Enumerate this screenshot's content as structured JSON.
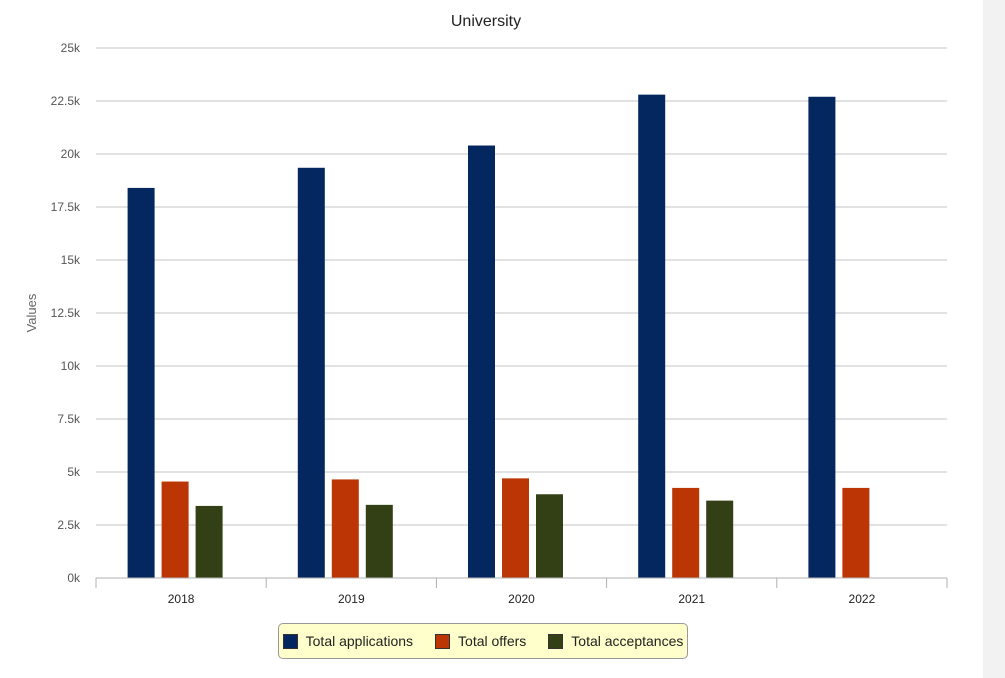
{
  "chart_data": {
    "type": "bar",
    "title": "University",
    "xlabel": "",
    "ylabel": "Values",
    "ylim": [
      0,
      25000
    ],
    "yticks": [
      {
        "value": 0,
        "label": "0k"
      },
      {
        "value": 2500,
        "label": "2.5k"
      },
      {
        "value": 5000,
        "label": "5k"
      },
      {
        "value": 7500,
        "label": "7.5k"
      },
      {
        "value": 10000,
        "label": "10k"
      },
      {
        "value": 12500,
        "label": "12.5k"
      },
      {
        "value": 15000,
        "label": "15k"
      },
      {
        "value": 17500,
        "label": "17.5k"
      },
      {
        "value": 20000,
        "label": "20k"
      },
      {
        "value": 22500,
        "label": "22.5k"
      },
      {
        "value": 25000,
        "label": "25k"
      }
    ],
    "categories": [
      "2018",
      "2019",
      "2020",
      "2021",
      "2022"
    ],
    "grid": true,
    "legend_position": "bottom",
    "series": [
      {
        "name": "Total applications",
        "color": "#04275f",
        "values": [
          18400,
          19350,
          20400,
          22800,
          22700
        ]
      },
      {
        "name": "Total offers",
        "color": "#bb3604",
        "values": [
          4550,
          4650,
          4700,
          4250,
          4250
        ]
      },
      {
        "name": "Total acceptances",
        "color": "#333f15",
        "values": [
          3400,
          3450,
          3950,
          3650,
          null
        ]
      }
    ]
  }
}
